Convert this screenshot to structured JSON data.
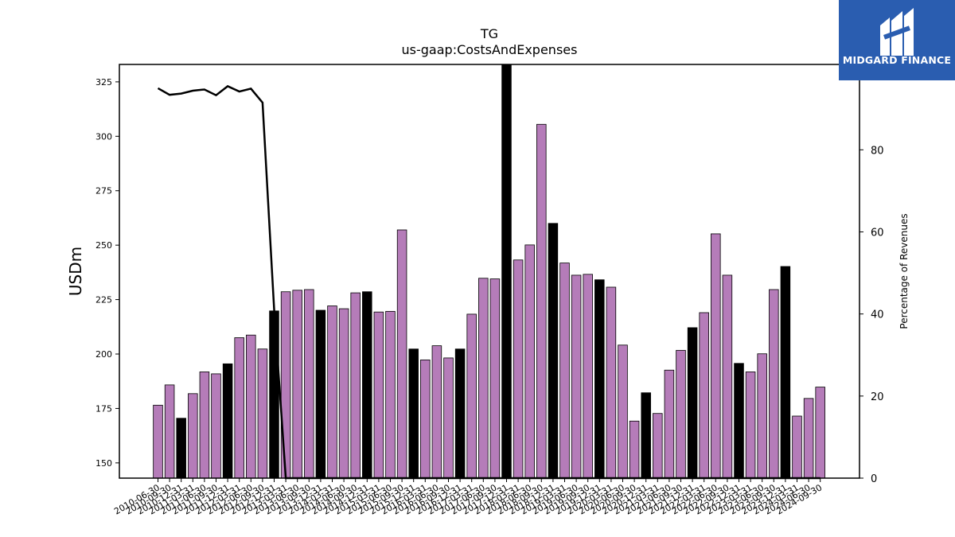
{
  "chart_data": {
    "type": "bar",
    "title": "TG",
    "subtitle": "us-gaap:CostsAndExpenses",
    "ylabel": "USDm",
    "y2label": "Percentage of Revenues",
    "ylim": [
      143,
      333
    ],
    "y2lim": [
      0,
      100.8
    ],
    "yticks": [
      150,
      175,
      200,
      225,
      250,
      275,
      300,
      325
    ],
    "y2ticks": [
      0,
      20,
      40,
      60,
      80
    ],
    "bar_colors": {
      "quarter": "#b57cb9",
      "fiscal_year_end": "#000000"
    },
    "line_color": "#000000",
    "categories": [
      "2010-06-30",
      "2010-09-30",
      "2010-12-31",
      "2011-03-31",
      "2011-06-30",
      "2011-09-30",
      "2011-12-31",
      "2012-03-31",
      "2012-06-30",
      "2012-09-30",
      "2012-12-31",
      "2013-03-31",
      "2013-06-30",
      "2013-09-30",
      "2013-12-31",
      "2014-03-31",
      "2014-06-30",
      "2014-09-30",
      "2014-12-31",
      "2015-03-31",
      "2015-06-30",
      "2015-09-30",
      "2015-12-31",
      "2016-03-31",
      "2016-06-30",
      "2016-09-30",
      "2016-12-31",
      "2017-03-31",
      "2017-06-30",
      "2017-09-30",
      "2017-12-31",
      "2018-03-31",
      "2018-06-30",
      "2018-09-30",
      "2018-12-31",
      "2019-03-31",
      "2019-06-30",
      "2019-09-30",
      "2019-12-31",
      "2020-03-31",
      "2020-06-30",
      "2020-09-30",
      "2020-12-31",
      "2021-03-31",
      "2021-06-30",
      "2021-09-30",
      "2021-12-31",
      "2022-03-31",
      "2022-06-30",
      "2022-09-30",
      "2022-12-31",
      "2023-03-31",
      "2023-06-30",
      "2023-09-30",
      "2023-12-31",
      "2024-03-31",
      "2024-06-30",
      "2024-09-30"
    ],
    "series": [
      {
        "values": [
          176.5,
          185.8,
          170.5,
          181.8,
          191.8,
          190.9,
          195.5,
          207.5,
          208.7,
          202.3,
          219.8,
          228.6,
          229.3,
          229.6,
          220.1,
          222.1,
          220.8,
          228.1,
          228.6,
          219.3,
          219.6,
          257.0,
          202.3,
          197.3,
          203.8,
          198.2,
          202.3,
          218.3,
          234.8,
          234.5,
          333.0,
          243.2,
          250.1,
          305.5,
          260.0,
          241.8,
          236.2,
          236.6,
          234.1,
          230.7,
          204.1,
          169.2,
          182.2,
          172.7,
          192.6,
          201.7,
          212.1,
          219.0,
          255.2,
          236.2,
          195.7,
          191.8,
          200.1,
          229.6,
          240.2,
          171.5,
          179.6,
          184.8
        ],
        "fiscal_year_end": [
          false,
          false,
          true,
          false,
          false,
          false,
          true,
          false,
          false,
          false,
          true,
          false,
          false,
          false,
          true,
          false,
          false,
          false,
          true,
          false,
          false,
          false,
          true,
          false,
          false,
          false,
          true,
          false,
          false,
          false,
          true,
          false,
          false,
          false,
          true,
          false,
          false,
          false,
          true,
          false,
          false,
          false,
          true,
          false,
          false,
          false,
          true,
          false,
          false,
          false,
          true,
          false,
          false,
          false,
          true,
          false,
          false,
          false
        ]
      },
      {
        "axis": "secondary",
        "values": [
          95.0,
          93.4,
          93.7,
          94.4,
          94.7,
          93.3,
          95.5,
          94.2,
          94.9,
          91.5,
          41.0,
          0,
          0,
          0,
          0,
          0,
          0,
          0,
          0,
          0,
          0,
          0,
          0,
          0,
          0,
          0,
          0,
          0,
          0,
          0,
          0,
          0,
          0,
          0,
          0,
          0,
          0,
          0,
          0,
          0,
          0,
          0,
          0,
          0,
          0,
          0,
          0,
          0,
          0,
          0,
          0,
          0,
          0,
          0,
          0,
          0,
          0,
          0
        ]
      }
    ]
  },
  "logo": {
    "text": "MIDGARD FINANCE",
    "icon": "midgard-logo-icon"
  }
}
